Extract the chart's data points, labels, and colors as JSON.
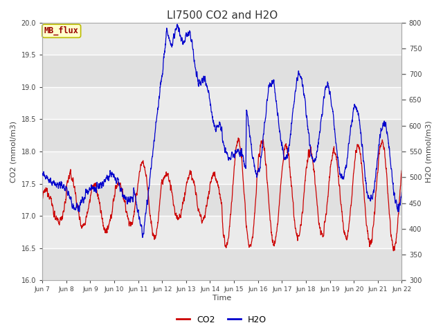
{
  "title": "LI7500 CO2 and H2O",
  "xlabel": "Time",
  "ylabel_left": "CO2 (mmol/m3)",
  "ylabel_right": "H2O (mmol/m3)",
  "co2_color": "#cc0000",
  "h2o_color": "#0000cc",
  "ylim_left": [
    16.0,
    20.0
  ],
  "ylim_right": [
    300,
    800
  ],
  "bg_color": "#e8e8e8",
  "bg_color2": "#d8d8d8",
  "annotation_text": "MB_flux",
  "annotation_bg": "#ffffcc",
  "annotation_border": "#bbbb00",
  "x_tick_labels": [
    "Jun 7",
    "Jun 8",
    "Jun 9",
    "Jun 10",
    "Jun 11",
    "Jun 12",
    "Jun 13",
    "Jun 14",
    "Jun 15",
    "Jun 16",
    "Jun 17",
    "Jun 18",
    "Jun 19",
    "Jun 20",
    "Jun 21",
    "Jun 22"
  ],
  "title_fontsize": 11,
  "axis_label_fontsize": 8,
  "tick_fontsize": 7,
  "legend_fontsize": 9,
  "figsize": [
    6.4,
    4.8
  ],
  "dpi": 100
}
